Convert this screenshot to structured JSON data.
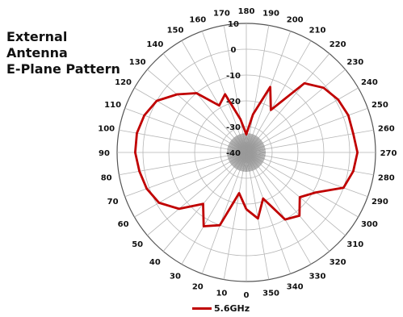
{
  "title_lines": [
    "External",
    "Antenna",
    "E-Plane Pattern"
  ],
  "chart_data": {
    "type": "polar-line",
    "title": "External Antenna E-Plane Pattern",
    "angle_ticks": [
      0,
      10,
      20,
      30,
      40,
      50,
      60,
      70,
      80,
      90,
      100,
      110,
      120,
      130,
      140,
      150,
      160,
      170,
      180,
      190,
      200,
      210,
      220,
      230,
      240,
      250,
      260,
      270,
      280,
      290,
      300,
      310,
      320,
      330,
      340,
      350
    ],
    "r_ticks": [
      -40,
      -30,
      -20,
      -10,
      0,
      10
    ],
    "r_range": [
      -40,
      10
    ],
    "grid": true,
    "legend_position": "bottom",
    "series": [
      {
        "name": "5.6GHz",
        "color": "#c00000",
        "points": [
          {
            "angle": 0,
            "value": -18
          },
          {
            "angle": 10,
            "value": -24
          },
          {
            "angle": 20,
            "value": -10
          },
          {
            "angle": 30,
            "value": -7
          },
          {
            "angle": 40,
            "value": -14
          },
          {
            "angle": 50,
            "value": -6
          },
          {
            "angle": 60,
            "value": -1
          },
          {
            "angle": 70,
            "value": 1
          },
          {
            "angle": 80,
            "value": 2
          },
          {
            "angle": 90,
            "value": 3
          },
          {
            "angle": 100,
            "value": 3
          },
          {
            "angle": 110,
            "value": 2
          },
          {
            "angle": 120,
            "value": 0
          },
          {
            "angle": 130,
            "value": -5
          },
          {
            "angle": 140,
            "value": -10
          },
          {
            "angle": 150,
            "value": -19
          },
          {
            "angle": 160,
            "value": -16
          },
          {
            "angle": 170,
            "value": -27
          },
          {
            "angle": 180,
            "value": -33
          },
          {
            "angle": 190,
            "value": -25
          },
          {
            "angle": 200,
            "value": -13
          },
          {
            "angle": 210,
            "value": -21
          },
          {
            "angle": 220,
            "value": -5
          },
          {
            "angle": 230,
            "value": -1
          },
          {
            "angle": 240,
            "value": 1
          },
          {
            "angle": 250,
            "value": 2
          },
          {
            "angle": 260,
            "value": 2
          },
          {
            "angle": 270,
            "value": 3
          },
          {
            "angle": 280,
            "value": 2
          },
          {
            "angle": 290,
            "value": 0
          },
          {
            "angle": 300,
            "value": -9
          },
          {
            "angle": 310,
            "value": -13
          },
          {
            "angle": 320,
            "value": -8
          },
          {
            "angle": 330,
            "value": -10
          },
          {
            "angle": 340,
            "value": -21
          },
          {
            "angle": 350,
            "value": -14
          }
        ]
      }
    ]
  }
}
